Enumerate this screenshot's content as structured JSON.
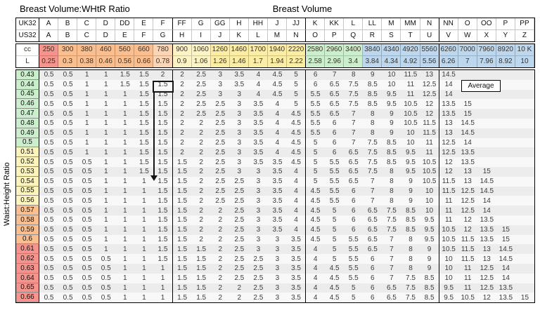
{
  "titles": {
    "left": "Breast Volume:WHtR Ratio",
    "center": "Breast Volume",
    "y_axis": "Waist:Height Ratio"
  },
  "header": {
    "row_labels": [
      "UK32",
      "US32",
      "cc",
      "L"
    ],
    "uk32": [
      "A",
      "B",
      "C",
      "D",
      "DD",
      "E",
      "F",
      "FF",
      "G",
      "GG",
      "H",
      "HH",
      "J",
      "JJ",
      "K",
      "KK",
      "L",
      "LL",
      "M",
      "MM",
      "N",
      "NN",
      "O",
      "OO",
      "P",
      "PP"
    ],
    "us32": [
      "A",
      "B",
      "C",
      "D",
      "E",
      "F",
      "G",
      "H",
      "I",
      "J",
      "K",
      "L",
      "M",
      "N",
      "O",
      "P",
      "Q",
      "R",
      "S",
      "T",
      "U",
      "V",
      "W",
      "X",
      "Y",
      "Z"
    ],
    "cc": [
      "250",
      "300",
      "380",
      "460",
      "560",
      "660",
      "780",
      "900",
      "1060",
      "1260",
      "1460",
      "1700",
      "1940",
      "2220",
      "2580",
      "2960",
      "3400",
      "3840",
      "4340",
      "4920",
      "5560",
      "6260",
      "7000",
      "7960",
      "8920",
      "10 K"
    ],
    "litres": [
      "0.25",
      "0.3",
      "0.38",
      "0.46",
      "0.56",
      "0.66",
      "0.78",
      "0.9",
      "1.06",
      "1.26",
      "1.46",
      "1.7",
      "1.94",
      "2.22",
      "2.58",
      "2.96",
      "3.4",
      "3.84",
      "4.34",
      "4.92",
      "5.56",
      "6.26",
      "7",
      "7.96",
      "8.92",
      "10"
    ]
  },
  "colors": {
    "red": "#F5938C",
    "orange": "#FBBE8E",
    "peach": "#FCD5B4",
    "yellow_pale": "#FDF4C6",
    "yellow": "#FBEDA4",
    "green": "#CBEECC",
    "blue": "#BDD7EE",
    "band_dark": "#ECECEC",
    "band_light": "#F8F8F8"
  },
  "cc_col_colors": [
    "red",
    "orange",
    "orange",
    "orange",
    "orange",
    "orange",
    "peach",
    "yellow_pale",
    "yellow_pale",
    "yellow",
    "yellow",
    "yellow",
    "yellow",
    "yellow",
    "green",
    "green",
    "green",
    "blue",
    "blue",
    "blue",
    "blue",
    "blue",
    "blue",
    "blue",
    "blue",
    "blue"
  ],
  "ratio_band_colors": {
    "green": "#CBEECC",
    "yellow": "#FCF4BA",
    "orange": "#FBBE8E",
    "red": "#F5938C"
  },
  "rows": [
    {
      "ratio": "0.43",
      "band": "green",
      "values": [
        "0.5",
        "0.5",
        "1",
        "1",
        "1.5",
        "1.5",
        "2",
        "2",
        "2.5",
        "3",
        "3.5",
        "4",
        "4.5",
        "5",
        "6",
        "7",
        "8",
        "9",
        "10",
        "11.5",
        "13",
        "14.5",
        "",
        "",
        "",
        ""
      ]
    },
    {
      "ratio": "0.44",
      "band": "green",
      "values": [
        "0.5",
        "0.5",
        "1",
        "1",
        "1.5",
        "1.5",
        "1.5",
        "2",
        "2.5",
        "3",
        "3.5",
        "4",
        "4.5",
        "5",
        "6",
        "6.5",
        "7.5",
        "8.5",
        "10",
        "11",
        "12.5",
        "14",
        "",
        "",
        "",
        ""
      ]
    },
    {
      "ratio": "0.45",
      "band": "green",
      "values": [
        "0.5",
        "0.5",
        "1",
        "1",
        "1",
        "1.5",
        "1.5",
        "2",
        "2.5",
        "3",
        "3",
        "4",
        "4.5",
        "5",
        "5.5",
        "6.5",
        "7.5",
        "8.5",
        "9.5",
        "11",
        "12.5",
        "14",
        "",
        "",
        "",
        ""
      ]
    },
    {
      "ratio": "0.46",
      "band": "green",
      "values": [
        "0.5",
        "0.5",
        "1",
        "1",
        "1",
        "1.5",
        "1.5",
        "2",
        "2.5",
        "2.5",
        "3",
        "3.5",
        "4",
        "5",
        "5.5",
        "6.5",
        "7.5",
        "8.5",
        "9.5",
        "10.5",
        "12",
        "13.5",
        "15",
        "",
        "",
        ""
      ]
    },
    {
      "ratio": "0.47",
      "band": "green",
      "values": [
        "0.5",
        "0.5",
        "1",
        "1",
        "1",
        "1.5",
        "1.5",
        "2",
        "2.5",
        "2.5",
        "3",
        "3.5",
        "4",
        "4.5",
        "5.5",
        "6.5",
        "7",
        "8",
        "9",
        "10.5",
        "12",
        "13.5",
        "15",
        "",
        "",
        ""
      ]
    },
    {
      "ratio": "0.48",
      "band": "green",
      "values": [
        "0.5",
        "0.5",
        "1",
        "1",
        "1",
        "1.5",
        "1.5",
        "2",
        "2",
        "2.5",
        "3",
        "3.5",
        "4",
        "4.5",
        "5.5",
        "6",
        "7",
        "8",
        "9",
        "10.5",
        "11.5",
        "13",
        "14.5",
        "",
        "",
        ""
      ]
    },
    {
      "ratio": "0.49",
      "band": "green",
      "values": [
        "0.5",
        "0.5",
        "1",
        "1",
        "1",
        "1.5",
        "1.5",
        "2",
        "2",
        "2.5",
        "3",
        "3.5",
        "4",
        "4.5",
        "5.5",
        "6",
        "7",
        "8",
        "9",
        "10",
        "11.5",
        "13",
        "14.5",
        "",
        "",
        ""
      ]
    },
    {
      "ratio": "0.5",
      "band": "green",
      "values": [
        "0.5",
        "0.5",
        "1",
        "1",
        "1",
        "1.5",
        "1.5",
        "2",
        "2",
        "2.5",
        "3",
        "3.5",
        "4",
        "4.5",
        "5",
        "6",
        "7",
        "7.5",
        "8.5",
        "10",
        "11",
        "12.5",
        "14",
        "",
        "",
        ""
      ]
    },
    {
      "ratio": "0.51",
      "band": "yellow",
      "values": [
        "0.5",
        "0.5",
        "1",
        "1",
        "1",
        "1.5",
        "1.5",
        "2",
        "2",
        "2.5",
        "3",
        "3.5",
        "4",
        "4.5",
        "5",
        "6",
        "6.5",
        "7.5",
        "8.5",
        "9.5",
        "11",
        "12.5",
        "13.5",
        "",
        "",
        ""
      ]
    },
    {
      "ratio": "0.52",
      "band": "yellow",
      "values": [
        "0.5",
        "0.5",
        "0.5",
        "1",
        "1",
        "1.5",
        "1.5",
        "1.5",
        "2",
        "2.5",
        "3",
        "3.5",
        "3.5",
        "4.5",
        "5",
        "5.5",
        "6.5",
        "7.5",
        "8.5",
        "9.5",
        "10.5",
        "12",
        "13.5",
        "",
        "",
        ""
      ]
    },
    {
      "ratio": "0.53",
      "band": "yellow",
      "values": [
        "0.5",
        "0.5",
        "0.5",
        "1",
        "1",
        "1.5",
        "1.5",
        "1.5",
        "2",
        "2.5",
        "3",
        "3",
        "3.5",
        "4",
        "5",
        "5.5",
        "6.5",
        "7.5",
        "8",
        "9.5",
        "10.5",
        "12",
        "13",
        "15",
        "",
        ""
      ]
    },
    {
      "ratio": "0.54",
      "band": "yellow",
      "values": [
        "0.5",
        "0.5",
        "0.5",
        "1",
        "1",
        "1",
        "1.5",
        "1.5",
        "2",
        "2.5",
        "2.5",
        "3",
        "3.5",
        "4",
        "5",
        "5.5",
        "6.5",
        "7",
        "8",
        "9",
        "10.5",
        "11.5",
        "13",
        "14.5",
        "",
        ""
      ]
    },
    {
      "ratio": "0.55",
      "band": "yellow",
      "values": [
        "0.5",
        "0.5",
        "0.5",
        "1",
        "1",
        "1",
        "1.5",
        "1.5",
        "2",
        "2.5",
        "2.5",
        "3",
        "3.5",
        "4",
        "4.5",
        "5.5",
        "6",
        "7",
        "8",
        "9",
        "10",
        "11.5",
        "12.5",
        "14.5",
        "",
        ""
      ]
    },
    {
      "ratio": "0.56",
      "band": "yellow",
      "values": [
        "0.5",
        "0.5",
        "0.5",
        "1",
        "1",
        "1",
        "1.5",
        "1.5",
        "2",
        "2.5",
        "2.5",
        "3",
        "3.5",
        "4",
        "4.5",
        "5.5",
        "6",
        "7",
        "8",
        "9",
        "10",
        "11",
        "12.5",
        "14",
        "",
        ""
      ]
    },
    {
      "ratio": "0.57",
      "band": "orange",
      "values": [
        "0.5",
        "0.5",
        "0.5",
        "1",
        "1",
        "1",
        "1.5",
        "1.5",
        "2",
        "2",
        "2.5",
        "3",
        "3.5",
        "4",
        "4.5",
        "5",
        "6",
        "6.5",
        "7.5",
        "8.5",
        "10",
        "11",
        "12.5",
        "14",
        "",
        ""
      ]
    },
    {
      "ratio": "0.58",
      "band": "orange",
      "values": [
        "0.5",
        "0.5",
        "0.5",
        "1",
        "1",
        "1",
        "1.5",
        "1.5",
        "2",
        "2",
        "2.5",
        "3",
        "3.5",
        "4",
        "4.5",
        "5",
        "6",
        "6.5",
        "7.5",
        "8.5",
        "9.5",
        "11",
        "12",
        "13.5",
        "",
        ""
      ]
    },
    {
      "ratio": "0.59",
      "band": "orange",
      "values": [
        "0.5",
        "0.5",
        "0.5",
        "1",
        "1",
        "1",
        "1.5",
        "1.5",
        "2",
        "2",
        "2.5",
        "3",
        "3.5",
        "4",
        "4.5",
        "5",
        "6",
        "6.5",
        "7.5",
        "8.5",
        "9.5",
        "10.5",
        "12",
        "13.5",
        "15",
        ""
      ]
    },
    {
      "ratio": "0.6",
      "band": "orange",
      "values": [
        "0.5",
        "0.5",
        "0.5",
        "1",
        "1",
        "1",
        "1.5",
        "1.5",
        "2",
        "2",
        "2.5",
        "3",
        "3",
        "3.5",
        "4.5",
        "5",
        "5.5",
        "6.5",
        "7",
        "8",
        "9.5",
        "10.5",
        "11.5",
        "13.5",
        "15",
        ""
      ]
    },
    {
      "ratio": "0.61",
      "band": "red",
      "values": [
        "0.5",
        "0.5",
        "0.5",
        "1",
        "1",
        "1",
        "1.5",
        "1.5",
        "1.5",
        "2",
        "2.5",
        "3",
        "3",
        "3.5",
        "4",
        "5",
        "5.5",
        "6.5",
        "7",
        "8",
        "9",
        "10.5",
        "11.5",
        "13",
        "14.5",
        ""
      ]
    },
    {
      "ratio": "0.62",
      "band": "red",
      "values": [
        "0.5",
        "0.5",
        "0.5",
        "0.5",
        "1",
        "1",
        "1.5",
        "1.5",
        "1.5",
        "2",
        "2.5",
        "2.5",
        "3",
        "3.5",
        "4",
        "5",
        "5.5",
        "6",
        "7",
        "8",
        "9",
        "10",
        "11.5",
        "13",
        "14.5",
        ""
      ]
    },
    {
      "ratio": "0.63",
      "band": "red",
      "values": [
        "0.5",
        "0.5",
        "0.5",
        "0.5",
        "1",
        "1",
        "1",
        "1.5",
        "1.5",
        "2",
        "2.5",
        "2.5",
        "3",
        "3.5",
        "4",
        "4.5",
        "5.5",
        "6",
        "7",
        "8",
        "9",
        "10",
        "11",
        "12.5",
        "14",
        ""
      ]
    },
    {
      "ratio": "0.64",
      "band": "red",
      "values": [
        "0.5",
        "0.5",
        "0.5",
        "0.5",
        "1",
        "1",
        "1",
        "1.5",
        "1.5",
        "2",
        "2.5",
        "2.5",
        "3",
        "3.5",
        "4",
        "4.5",
        "5.5",
        "6",
        "7",
        "7.5",
        "8.5",
        "10",
        "11",
        "12.5",
        "14",
        ""
      ]
    },
    {
      "ratio": "0.65",
      "band": "red",
      "values": [
        "0.5",
        "0.5",
        "0.5",
        "0.5",
        "1",
        "1",
        "1",
        "1.5",
        "1.5",
        "2",
        "2",
        "2.5",
        "3",
        "3.5",
        "4",
        "4.5",
        "5",
        "6",
        "6.5",
        "7.5",
        "8.5",
        "9.5",
        "11",
        "12.5",
        "13.5",
        ""
      ]
    },
    {
      "ratio": "0.66",
      "band": "red",
      "values": [
        "0.5",
        "0.5",
        "0.5",
        "0.5",
        "1",
        "1",
        "1",
        "1.5",
        "1.5",
        "2",
        "2",
        "2.5",
        "3",
        "3.5",
        "4",
        "4.5",
        "5",
        "6",
        "6.5",
        "7.5",
        "8.5",
        "9.5",
        "10.5",
        "12",
        "13.5",
        "15"
      ]
    }
  ],
  "annotations": {
    "average_label": "Average",
    "highlight_cell": {
      "row": "0.44",
      "column": "F",
      "value": "1.5"
    },
    "arrow_target_row": "0.54"
  }
}
